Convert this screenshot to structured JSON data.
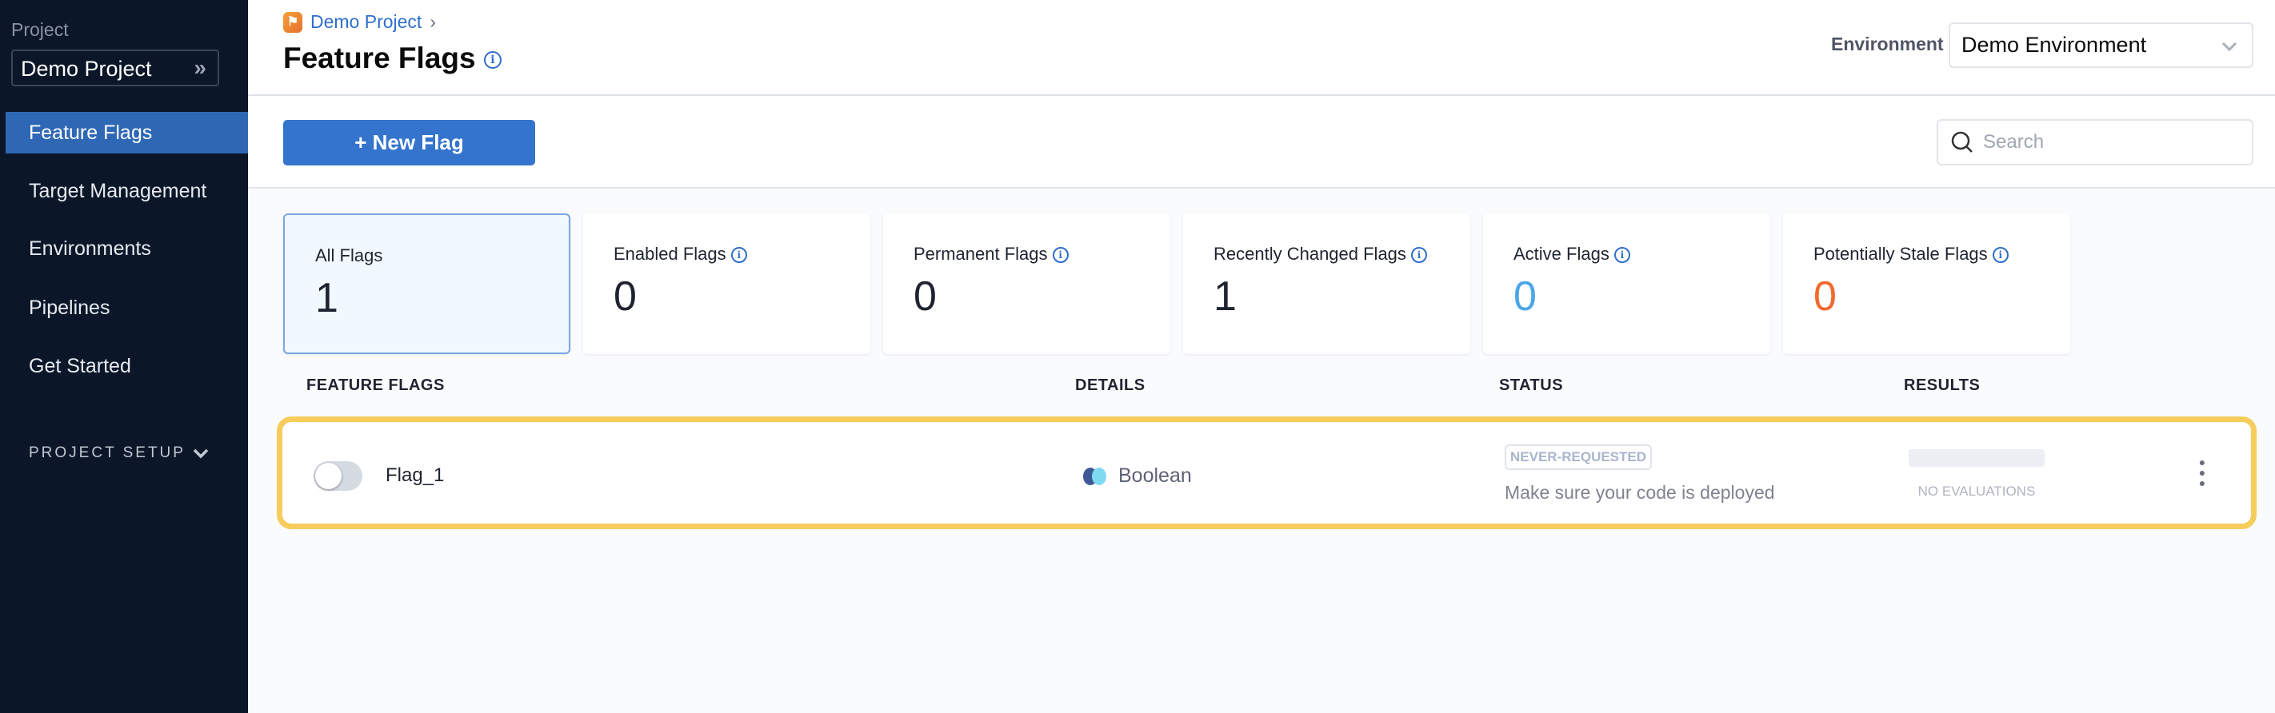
{
  "sidebar": {
    "project_label": "Project",
    "project_name": "Demo Project",
    "items": [
      {
        "label": "Feature Flags",
        "active": true
      },
      {
        "label": "Target Management"
      },
      {
        "label": "Environments"
      },
      {
        "label": "Pipelines"
      },
      {
        "label": "Get Started"
      }
    ],
    "section": "PROJECT SETUP"
  },
  "header": {
    "breadcrumb": "Demo Project",
    "title": "Feature Flags",
    "environment_label": "Environment",
    "environment_value": "Demo Environment"
  },
  "toolbar": {
    "new_flag": "+ New Flag",
    "search_placeholder": "Search"
  },
  "cards": [
    {
      "label": "All Flags",
      "value": "1",
      "color": "#1f2430"
    },
    {
      "label": "Enabled Flags",
      "value": "0",
      "color": "#1f2430"
    },
    {
      "label": "Permanent Flags",
      "value": "0",
      "color": "#1f2430"
    },
    {
      "label": "Recently Changed Flags",
      "value": "1",
      "color": "#1f2430"
    },
    {
      "label": "Active Flags",
      "value": "0",
      "color": "#4aa6e6"
    },
    {
      "label": "Potentially Stale Flags",
      "value": "0",
      "color": "#ef6a2e"
    }
  ],
  "columns": [
    "FEATURE FLAGS",
    "DETAILS",
    "STATUS",
    "RESULTS"
  ],
  "flags": [
    {
      "name": "Flag_1",
      "enabled": false,
      "type": "Boolean",
      "status": "NEVER-REQUESTED",
      "status_hint": "Make sure your code is deployed",
      "results": "NO EVALUATIONS"
    }
  ],
  "colors": {
    "accent": "#3474cc",
    "sidebar": "#0b1729",
    "highlight": "#f6cd5c"
  }
}
